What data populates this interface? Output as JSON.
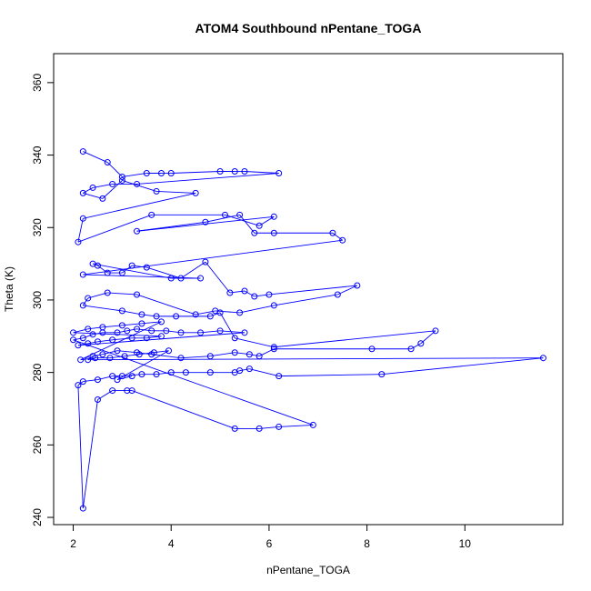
{
  "chart_data": {
    "type": "scatter",
    "title": "ATOM4 Southbound nPentane_TOGA",
    "xlabel": "nPentane_TOGA",
    "ylabel": "Theta (K)",
    "xlim": [
      1.6,
      12.0
    ],
    "ylim": [
      238,
      368
    ],
    "xticks": [
      2,
      4,
      6,
      8,
      10
    ],
    "yticks": [
      240,
      260,
      280,
      300,
      320,
      340,
      360
    ],
    "grid": false,
    "legend": "none",
    "series": [
      {
        "color": "#0000ff",
        "marker": "open-circle",
        "connected": true,
        "x": [
          2.2,
          2.7,
          3.0,
          3.5,
          3.8,
          4.0,
          5.0,
          5.3,
          5.5,
          6.2,
          3.3,
          2.8,
          2.4,
          2.2,
          2.6,
          3.0,
          3.7,
          4.5,
          2.2,
          2.1,
          3.6,
          5.1,
          5.8,
          6.1,
          3.3,
          4.7,
          5.4,
          5.7,
          6.1,
          7.3,
          7.5,
          2.2,
          4.6,
          4.0,
          2.4,
          2.5,
          2.7,
          3.0,
          3.2,
          3.5,
          4.2,
          4.7,
          5.2,
          5.5,
          5.7,
          6.0,
          7.8,
          7.4,
          6.1,
          5.4,
          4.9,
          4.5,
          3.3,
          2.7,
          2.3,
          2.2,
          3.0,
          3.4,
          3.7,
          4.1,
          4.8,
          5.0,
          5.3,
          6.1,
          9.4,
          9.1,
          8.9,
          8.1,
          6.1,
          5.8,
          5.6,
          5.3,
          4.8,
          4.2,
          3.6,
          3.3,
          2.9,
          2.6,
          2.4,
          2.3,
          11.6,
          8.3,
          6.2,
          5.6,
          5.4,
          5.3,
          4.8,
          4.3,
          4.0,
          3.7,
          3.4,
          3.0,
          2.8,
          2.5,
          2.2,
          2.1,
          2.2,
          2.5,
          2.8,
          3.1,
          3.2,
          5.3,
          5.8,
          6.2,
          6.9,
          2.0,
          2.2,
          2.4,
          2.6,
          2.9,
          3.1,
          3.3,
          3.6,
          3.9,
          4.2,
          4.6,
          5.0,
          5.5,
          2.1,
          2.3,
          2.5,
          2.8,
          3.2,
          3.5,
          3.8,
          2.0,
          2.3,
          2.6,
          3.0,
          3.4,
          3.8,
          2.15,
          2.45,
          2.75,
          3.05,
          3.35,
          3.65,
          3.95,
          2.9,
          3.2
        ],
        "y": [
          341,
          338,
          334,
          335,
          335,
          335,
          335.5,
          335.5,
          335.5,
          335,
          332,
          332,
          331,
          329.5,
          328,
          333,
          330,
          329.5,
          322.5,
          316,
          323.5,
          323.5,
          320.5,
          323,
          319,
          321.5,
          323.5,
          318.5,
          318.5,
          318.5,
          316.5,
          307,
          306,
          306,
          310,
          309.5,
          307.5,
          307.5,
          309.5,
          309,
          306,
          310.5,
          302,
          302.5,
          301,
          301.5,
          304,
          301.5,
          298.5,
          296.5,
          297,
          296,
          301.5,
          302,
          300.5,
          298.5,
          297,
          296,
          295.5,
          295.5,
          295.5,
          296.5,
          289.5,
          287,
          291.5,
          288,
          286.5,
          286.5,
          286.5,
          284.5,
          285,
          285.5,
          284.5,
          284,
          285,
          285.5,
          286,
          285,
          284.5,
          283.5,
          284,
          279.5,
          279,
          281,
          280.5,
          280,
          280,
          280,
          280,
          279.5,
          279.5,
          279,
          279,
          278,
          277.5,
          276.5,
          242.5,
          272.5,
          275,
          275,
          275,
          264.5,
          264.5,
          265,
          265.5,
          289,
          289.5,
          290.5,
          291,
          291,
          291.5,
          292,
          291.5,
          291.5,
          291,
          291,
          291.5,
          291,
          287.5,
          288,
          288.5,
          289,
          289.5,
          289.5,
          290,
          291,
          292,
          292.5,
          293,
          293.5,
          294,
          283.5,
          284,
          284,
          284.5,
          285,
          285.5,
          286,
          278,
          279
        ]
      }
    ]
  }
}
